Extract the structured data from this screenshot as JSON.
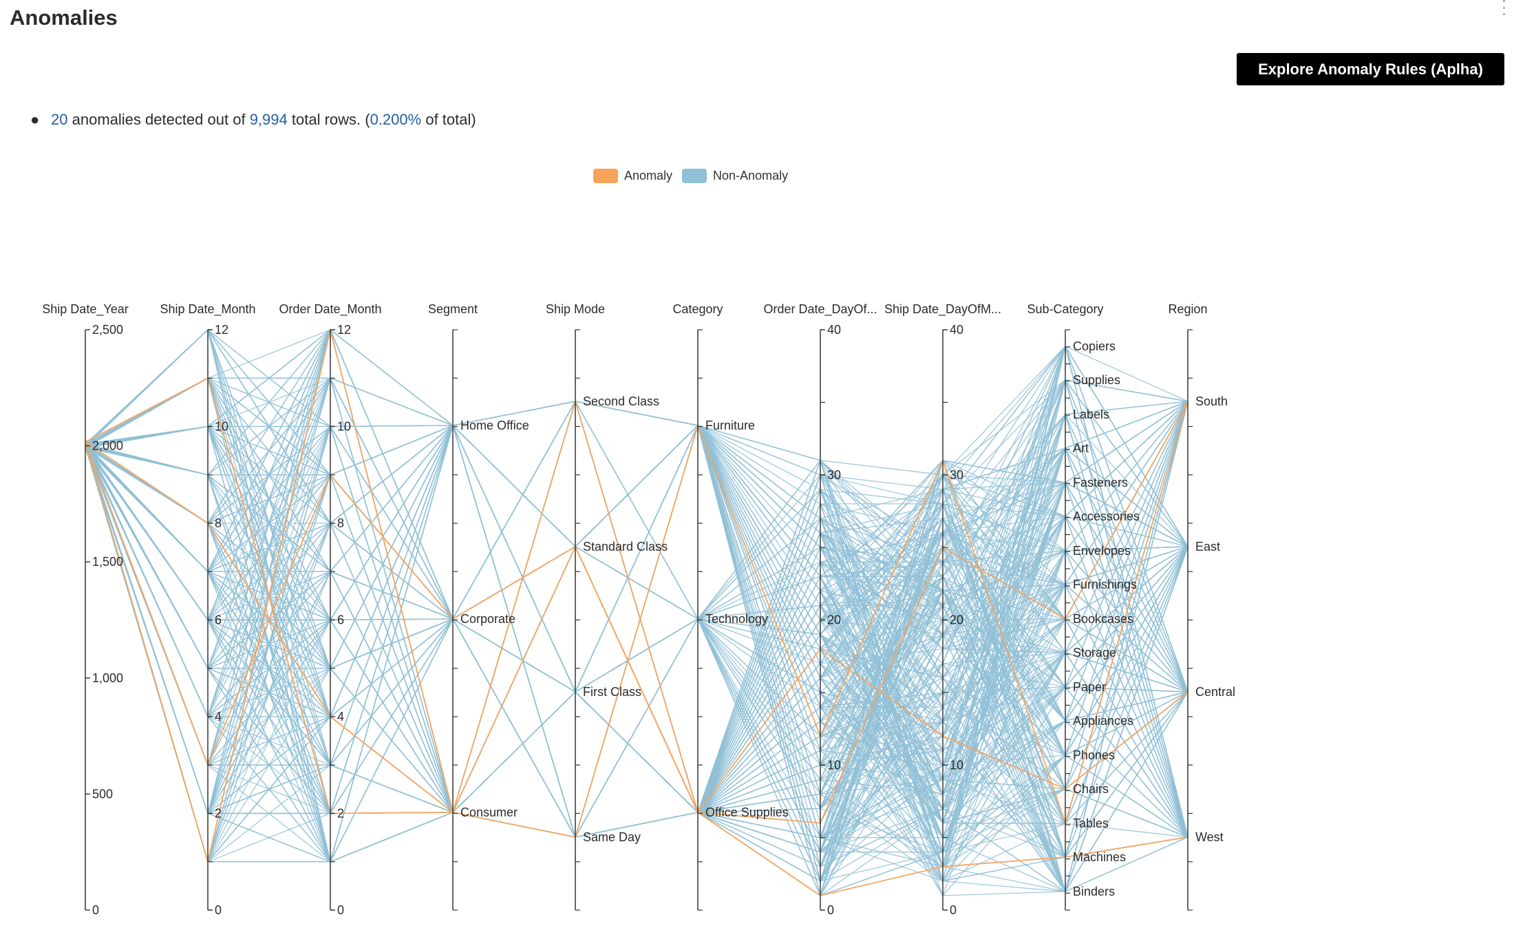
{
  "header": {
    "title": "Anomalies",
    "explore_button": "Explore Anomaly Rules (Aplha)"
  },
  "summary": {
    "anomaly_count": "20",
    "text_1": "anomalies detected out of",
    "total_rows": "9,994",
    "text_2": "total rows. (",
    "percent": "0.200%",
    "text_3": "of total)"
  },
  "colors": {
    "anomaly": "#f7a35c",
    "non_anomaly": "#90c0d6",
    "axis": "#333333",
    "link": "#245fa1"
  },
  "icons": {
    "menu": "kebab-menu-icon"
  },
  "chart_data": {
    "type": "parallel-coordinates",
    "legend": {
      "position": "top-center",
      "items": [
        "Anomaly",
        "Non-Anomaly"
      ]
    },
    "axes": [
      {
        "name": "Ship Date_Year",
        "kind": "numeric",
        "range": [
          0,
          2500
        ],
        "ticks": [
          "0",
          "500",
          "1,000",
          "1,500",
          "2,000",
          "2,500"
        ],
        "tick_values": [
          0,
          500,
          1000,
          1500,
          2000,
          2500
        ],
        "minor": 0
      },
      {
        "name": "Ship Date_Month",
        "kind": "numeric",
        "range": [
          0,
          12
        ],
        "ticks": [
          "0",
          "2",
          "4",
          "6",
          "8",
          "10",
          "12"
        ],
        "tick_values": [
          0,
          2,
          4,
          6,
          8,
          10,
          12
        ],
        "minor": 1
      },
      {
        "name": "Order Date_Month",
        "kind": "numeric",
        "range": [
          0,
          12
        ],
        "ticks": [
          "0",
          "2",
          "4",
          "6",
          "8",
          "10",
          "12"
        ],
        "tick_values": [
          0,
          2,
          4,
          6,
          8,
          10,
          12
        ],
        "minor": 1
      },
      {
        "name": "Segment",
        "kind": "category",
        "categories": [
          "Home Office",
          "Corporate",
          "Consumer"
        ]
      },
      {
        "name": "Ship Mode",
        "kind": "category",
        "categories": [
          "Second Class",
          "Standard Class",
          "First Class",
          "Same Day"
        ]
      },
      {
        "name": "Category",
        "kind": "category",
        "categories": [
          "Furniture",
          "Technology",
          "Office Supplies"
        ]
      },
      {
        "name": "Order Date_DayOf...",
        "kind": "numeric",
        "range": [
          0,
          40
        ],
        "ticks": [
          "0",
          "10",
          "20",
          "30",
          "40"
        ],
        "tick_values": [
          0,
          10,
          20,
          30,
          40
        ],
        "minor": 5
      },
      {
        "name": "Ship Date_DayOfM...",
        "kind": "numeric",
        "range": [
          0,
          40
        ],
        "ticks": [
          "0",
          "10",
          "20",
          "30",
          "40"
        ],
        "tick_values": [
          0,
          10,
          20,
          30,
          40
        ],
        "minor": 5
      },
      {
        "name": "Sub-Category",
        "kind": "category",
        "categories": [
          "Copiers",
          "Supplies",
          "Labels",
          "Art",
          "Fasteners",
          "Accessories",
          "Envelopes",
          "Furnishings",
          "Bookcases",
          "Storage",
          "Paper",
          "Appliances",
          "Phones",
          "Chairs",
          "Tables",
          "Machines",
          "Binders"
        ]
      },
      {
        "name": "Region",
        "kind": "category",
        "categories": [
          "South",
          "East",
          "Central",
          "West"
        ]
      }
    ],
    "anomalies": [
      {
        "Ship Date_Year": 2017,
        "Ship Date_Month": 11,
        "Order Date_Month": 2,
        "Segment": "Consumer",
        "Ship Mode": "Same Day",
        "Category": "Furniture",
        "Order Date_DayOf...": 12,
        "Ship Date_DayOfM...": 31,
        "Sub-Category": "Tables",
        "Region": "South"
      },
      {
        "Ship Date_Year": 2017,
        "Ship Date_Month": 1,
        "Order Date_Month": 12,
        "Segment": "Consumer",
        "Ship Mode": "Standard Class",
        "Category": "Office Supplies",
        "Order Date_DayOf...": 1,
        "Ship Date_DayOfM...": 3,
        "Sub-Category": "Machines",
        "Region": "West"
      },
      {
        "Ship Date_Year": 2017,
        "Ship Date_Month": 3,
        "Order Date_Month": 9,
        "Segment": "Corporate",
        "Ship Mode": "Standard Class",
        "Category": "Office Supplies",
        "Order Date_DayOf...": 18,
        "Ship Date_DayOfM...": 12,
        "Sub-Category": "Chairs",
        "Region": "Central"
      },
      {
        "Ship Date_Year": 2017,
        "Ship Date_Month": 8,
        "Order Date_Month": 4,
        "Segment": "Consumer",
        "Ship Mode": "Second Class",
        "Category": "Office Supplies",
        "Order Date_DayOf...": 6,
        "Ship Date_DayOfM...": 25,
        "Sub-Category": "Bookcases",
        "Region": "South"
      }
    ]
  }
}
